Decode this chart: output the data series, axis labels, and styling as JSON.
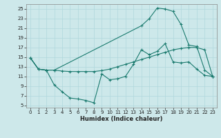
{
  "xlabel": "Humidex (Indice chaleur)",
  "background_color": "#cde8ea",
  "grid_color": "#b0d8dc",
  "line_color": "#1a7a6e",
  "xlim": [
    -0.5,
    23.5
  ],
  "ylim": [
    4.5,
    26.0
  ],
  "xticks": [
    0,
    1,
    2,
    3,
    4,
    5,
    6,
    7,
    8,
    9,
    10,
    11,
    12,
    13,
    14,
    15,
    16,
    17,
    18,
    19,
    20,
    21,
    22,
    23
  ],
  "yticks": [
    5,
    7,
    9,
    11,
    13,
    15,
    17,
    19,
    21,
    23,
    25
  ],
  "curve1_x": [
    0,
    1,
    2,
    3,
    4,
    5,
    6,
    7,
    8,
    9,
    10,
    11,
    12,
    13,
    14,
    15,
    16,
    17,
    18,
    19,
    20,
    21,
    22,
    23
  ],
  "curve1_y": [
    14.8,
    12.5,
    12.3,
    9.2,
    7.8,
    6.5,
    6.3,
    6.0,
    5.5,
    11.5,
    10.3,
    10.5,
    11.0,
    13.5,
    16.5,
    15.5,
    16.2,
    17.8,
    14.0,
    13.8,
    14.0,
    12.5,
    11.2,
    11.0
  ],
  "curve2_x": [
    0,
    1,
    2,
    3,
    14,
    15,
    16,
    17,
    18,
    19,
    20,
    21,
    22,
    23
  ],
  "curve2_y": [
    14.8,
    12.5,
    12.3,
    12.3,
    21.5,
    23.0,
    25.2,
    25.0,
    24.5,
    21.8,
    17.5,
    17.2,
    12.3,
    11.0
  ],
  "curve3_x": [
    0,
    1,
    2,
    3,
    4,
    5,
    6,
    7,
    8,
    9,
    10,
    11,
    12,
    13,
    14,
    15,
    16,
    17,
    18,
    19,
    20,
    21,
    22,
    23
  ],
  "curve3_y": [
    14.8,
    12.5,
    12.3,
    12.3,
    12.1,
    12.0,
    12.0,
    12.0,
    12.0,
    12.2,
    12.5,
    13.0,
    13.5,
    14.0,
    14.5,
    15.0,
    15.5,
    16.0,
    16.5,
    16.8,
    17.0,
    17.0,
    16.5,
    11.0
  ],
  "tick_fontsize": 5,
  "xlabel_fontsize": 6,
  "marker_size": 2.0,
  "line_width": 0.8
}
